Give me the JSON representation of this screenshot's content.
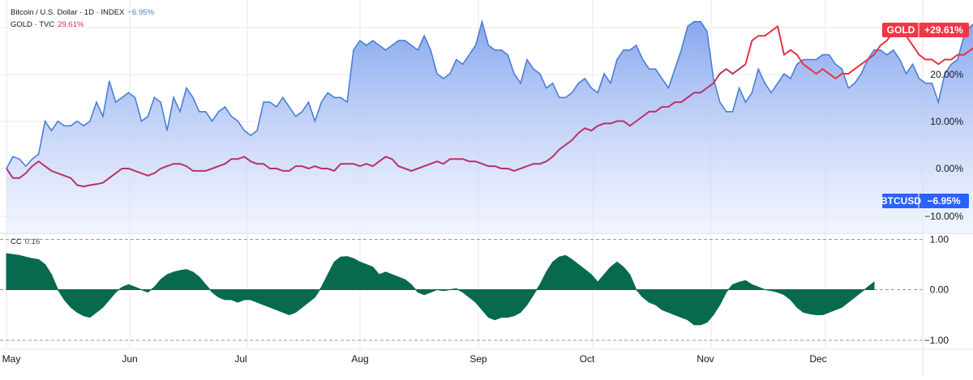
{
  "legend": {
    "btc": {
      "name": "Bitcoin / U.S. Dollar · 1D · INDEX",
      "change": "−6.95%",
      "color": "#4a7fd6"
    },
    "gold": {
      "name": "GOLD · TVC",
      "change": "29.61%",
      "color": "#d9304f"
    },
    "cc": {
      "name": "CC",
      "value": "0.16"
    }
  },
  "badges": {
    "gold": {
      "label": "GOLD",
      "value": "+29.61%",
      "color": "#f23645"
    },
    "btc": {
      "label": "BTCUSD",
      "value": "−6.95%",
      "color": "#2962ff"
    }
  },
  "colors": {
    "btc_line": "#4a7fd6",
    "btc_fill_top": "#7ea0ee",
    "gold_upper": "#e8323e",
    "gold_lower": "#b8336a",
    "cc_fill": "#076a4f",
    "grid": "#e8e8ef",
    "axis_text": "#131722"
  },
  "chart_data": [
    {
      "type": "line",
      "title": "",
      "y_axis_side": "right",
      "ylim": [
        -12,
        31
      ],
      "yticks": [
        20,
        10,
        0,
        -10
      ],
      "ytick_labels": [
        "20.00%",
        "10.00%",
        "0.00%",
        "−10.00%"
      ],
      "x_axis": {
        "unit": "day-of-year",
        "range": [
          121,
          350
        ],
        "ticks": [
          121,
          152,
          182,
          213,
          244,
          274,
          305,
          335
        ],
        "tick_labels": [
          "May",
          "Jun",
          "Jul",
          "Aug",
          "Sep",
          "Oct",
          "Nov",
          "Dec"
        ]
      },
      "series": [
        {
          "name": "BTCUSD",
          "style": "area",
          "points": [
            [
              121,
              0
            ],
            [
              122,
              2.5
            ],
            [
              123,
              2
            ],
            [
              124,
              0.5
            ],
            [
              125,
              2
            ],
            [
              126,
              3
            ],
            [
              127,
              10
            ],
            [
              128,
              8
            ],
            [
              129,
              10
            ],
            [
              130,
              9
            ],
            [
              131,
              9
            ],
            [
              132,
              10
            ],
            [
              133,
              9
            ],
            [
              134,
              10
            ],
            [
              135,
              14
            ],
            [
              136,
              11
            ],
            [
              137,
              18.5
            ],
            [
              138,
              14
            ],
            [
              139,
              15
            ],
            [
              140,
              16
            ],
            [
              141,
              15
            ],
            [
              142,
              10
            ],
            [
              143,
              11
            ],
            [
              144,
              15
            ],
            [
              145,
              14
            ],
            [
              146,
              8
            ],
            [
              147,
              15
            ],
            [
              148,
              12
            ],
            [
              149,
              17
            ],
            [
              150,
              15
            ],
            [
              151,
              12
            ],
            [
              152,
              12
            ],
            [
              153,
              10
            ],
            [
              154,
              12
            ],
            [
              155,
              13
            ],
            [
              156,
              11
            ],
            [
              157,
              10
            ],
            [
              158,
              8
            ],
            [
              159,
              7
            ],
            [
              160,
              8
            ],
            [
              161,
              14
            ],
            [
              162,
              14
            ],
            [
              163,
              13
            ],
            [
              164,
              15
            ],
            [
              165,
              13
            ],
            [
              166,
              11
            ],
            [
              167,
              12
            ],
            [
              168,
              14
            ],
            [
              169,
              10
            ],
            [
              170,
              14
            ],
            [
              171,
              16
            ],
            [
              172,
              15
            ],
            [
              173,
              15
            ],
            [
              174,
              14
            ],
            [
              175,
              25
            ],
            [
              176,
              27
            ],
            [
              177,
              26
            ],
            [
              178,
              27
            ],
            [
              179,
              26
            ],
            [
              180,
              25
            ],
            [
              181,
              26
            ],
            [
              182,
              27
            ],
            [
              183,
              27
            ],
            [
              184,
              26
            ],
            [
              185,
              25
            ],
            [
              186,
              28
            ],
            [
              187,
              25
            ],
            [
              188,
              20
            ],
            [
              189,
              19
            ],
            [
              190,
              20
            ],
            [
              191,
              23
            ],
            [
              192,
              22
            ],
            [
              193,
              24
            ],
            [
              194,
              26
            ],
            [
              195,
              31
            ],
            [
              196,
              26
            ],
            [
              197,
              25
            ],
            [
              198,
              25
            ],
            [
              199,
              24
            ],
            [
              200,
              20
            ],
            [
              201,
              18
            ],
            [
              202,
              23
            ],
            [
              203,
              21
            ],
            [
              204,
              20
            ],
            [
              205,
              17
            ],
            [
              206,
              18
            ],
            [
              207,
              15
            ],
            [
              208,
              15
            ],
            [
              209,
              16
            ],
            [
              210,
              18
            ],
            [
              211,
              19
            ],
            [
              212,
              17
            ],
            [
              213,
              16
            ],
            [
              214,
              20
            ],
            [
              215,
              18
            ],
            [
              216,
              23
            ],
            [
              217,
              25
            ],
            [
              218,
              25
            ],
            [
              219,
              26
            ],
            [
              220,
              23
            ],
            [
              221,
              21
            ],
            [
              222,
              21
            ],
            [
              223,
              19
            ],
            [
              224,
              17
            ],
            [
              225,
              21
            ],
            [
              226,
              25
            ],
            [
              227,
              30
            ],
            [
              228,
              31
            ],
            [
              229,
              31
            ],
            [
              230,
              29
            ],
            [
              231,
              19
            ],
            [
              232,
              14
            ],
            [
              233,
              12
            ],
            [
              234,
              12
            ],
            [
              235,
              17
            ],
            [
              236,
              14
            ],
            [
              237,
              16
            ],
            [
              238,
              21
            ],
            [
              239,
              18
            ],
            [
              240,
              16
            ],
            [
              241,
              18
            ],
            [
              242,
              20
            ],
            [
              243,
              19
            ],
            [
              244,
              22
            ],
            [
              245,
              23
            ],
            [
              246,
              23
            ],
            [
              247,
              23
            ],
            [
              248,
              24
            ],
            [
              249,
              24
            ],
            [
              250,
              22
            ],
            [
              251,
              21
            ],
            [
              252,
              17
            ]
          ],
          "note": "series continues below"
        }
      ]
    }
  ]
}
